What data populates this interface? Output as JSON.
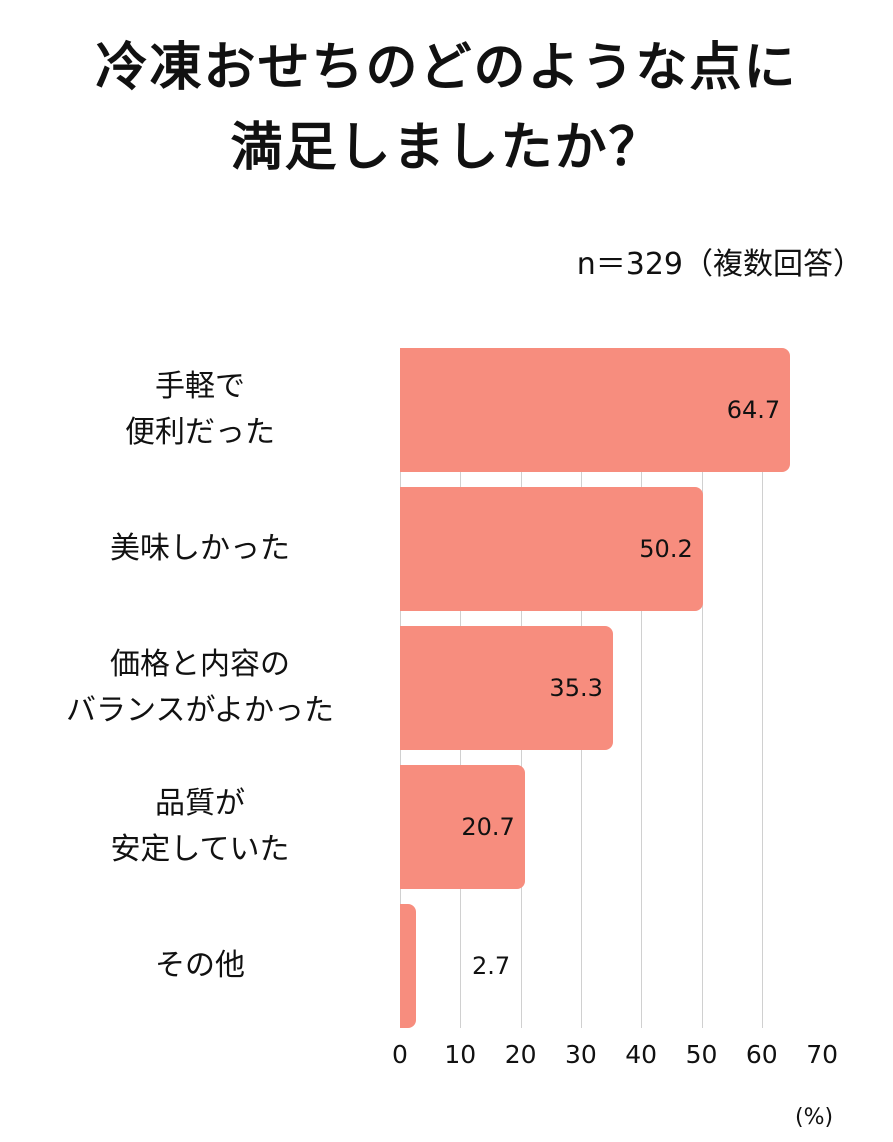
{
  "title": [
    "冷凍おせちのどのような点に",
    "満足しましたか？"
  ],
  "subtitle": "n＝329（複数回答）",
  "unit": "(%)",
  "bar_color": "#F78D7E",
  "categories": [
    {
      "lines": [
        "手軽で",
        "便利だった"
      ],
      "value": "64.7"
    },
    {
      "lines": [
        "美味しかった"
      ],
      "value": "50.2"
    },
    {
      "lines": [
        "価格と内容の",
        "バランスがよかった"
      ],
      "value": "35.3"
    },
    {
      "lines": [
        "品質が",
        "安定していた"
      ],
      "value": "20.7"
    },
    {
      "lines": [
        "その他"
      ],
      "value": "2.7"
    }
  ],
  "ticks": [
    "0",
    "10",
    "20",
    "30",
    "40",
    "50",
    "60",
    "70"
  ],
  "chart_data": {
    "type": "bar",
    "orientation": "horizontal",
    "title": "冷凍おせちのどのような点に満足しましたか？",
    "subtitle": "n＝329（複数回答）",
    "categories": [
      "手軽で便利だった",
      "美味しかった",
      "価格と内容のバランスがよかった",
      "品質が安定していた",
      "その他"
    ],
    "values": [
      64.7,
      50.2,
      35.3,
      20.7,
      2.7
    ],
    "xlabel": "(%)",
    "ylabel": "",
    "xlim": [
      0,
      70
    ],
    "xticks": [
      0,
      10,
      20,
      30,
      40,
      50,
      60,
      70
    ],
    "grid": true,
    "legend": null
  }
}
